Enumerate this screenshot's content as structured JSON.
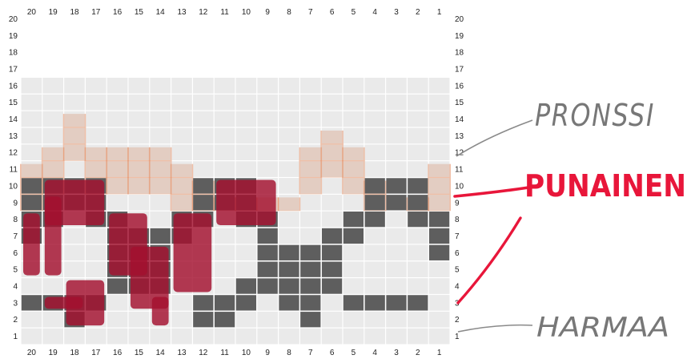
{
  "grid": {
    "columns": 20,
    "rows": 20,
    "pattern_rows": 16,
    "column_labels_top": [
      "20",
      "19",
      "18",
      "17",
      "16",
      "15",
      "14",
      "13",
      "12",
      "11",
      "10",
      "9",
      "8",
      "7",
      "6",
      "5",
      "4",
      "3",
      "2",
      "1"
    ],
    "column_labels_bottom": [
      "20",
      "19",
      "18",
      "17",
      "16",
      "15",
      "14",
      "13",
      "12",
      "11",
      "10",
      "9",
      "8",
      "7",
      "6",
      "5",
      "4",
      "3",
      "2",
      "1"
    ],
    "row_labels_left": [
      "20",
      "19",
      "18",
      "17",
      "16",
      "15",
      "14",
      "13",
      "12",
      "11",
      "10",
      "9",
      "8",
      "7",
      "6",
      "5",
      "4",
      "3",
      "2",
      "1"
    ],
    "row_labels_right": [
      "20",
      "19",
      "18",
      "17",
      "16",
      "15",
      "14",
      "13",
      "12",
      "11",
      "10",
      "9",
      "8",
      "7",
      "6",
      "5",
      "4",
      "3",
      "2",
      "1"
    ],
    "dark_cells_by_row": {
      "10": [
        2,
        3,
        4,
        10,
        11,
        12,
        17,
        18,
        19,
        20
      ],
      "9": [
        2,
        3,
        4,
        10,
        11,
        12,
        17,
        18,
        19,
        20
      ],
      "8": [
        1,
        2,
        4,
        5,
        9,
        10,
        12,
        13,
        16,
        17,
        19,
        20
      ],
      "7": [
        1,
        5,
        6,
        9,
        13,
        14,
        15,
        16,
        20
      ],
      "6": [
        1,
        6,
        7,
        8,
        9,
        14,
        15,
        16
      ],
      "5": [
        6,
        7,
        8,
        9,
        14,
        15,
        16
      ],
      "4": [
        6,
        7,
        8,
        9,
        10,
        14,
        15,
        16
      ],
      "3": [
        2,
        3,
        4,
        5,
        7,
        8,
        10,
        11,
        12,
        17,
        18,
        19,
        20
      ],
      "2": [
        7,
        11,
        12,
        18
      ],
      "1": []
    },
    "tinted_column_tops": [
      11,
      12,
      14,
      12,
      12,
      12,
      12,
      11,
      10,
      9,
      9,
      9,
      9,
      12,
      13,
      12,
      10,
      8,
      9,
      11
    ],
    "red_overlay": [
      "col 20, rows 5-8",
      "cols 19-17, rows 9-10",
      "cols 18-17, rows 2-4",
      "cols 16-12, rows 3-8",
      "cols 11-9, rows 8-10"
    ]
  },
  "annotations": [
    {
      "text": "PRONSSI",
      "color": "#777777"
    },
    {
      "text": "PUNAINEN",
      "color": "#e8163a"
    },
    {
      "text": "HARMAA",
      "color": "#777777"
    }
  ],
  "colors": {
    "grid_light": "#d9d9d9",
    "grid_line": "#ffffff",
    "dark_cell": "#5e5e5e",
    "bronze": "#e48a5e",
    "red_pen": "#a3102e",
    "annotation_red": "#e8163a",
    "annotation_grey": "#777777"
  }
}
